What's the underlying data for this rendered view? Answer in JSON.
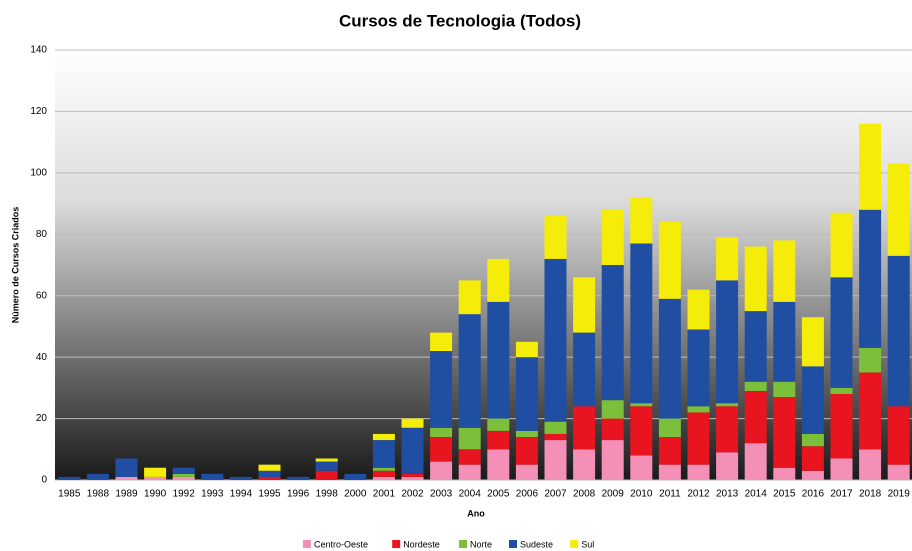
{
  "chart_data": {
    "type": "stacked_bar",
    "title": "Cursos de Tecnologia (Todos)",
    "x_label": "Ano",
    "y_label": "Número de Cursos Criados",
    "categories": [
      "1985",
      "1988",
      "1989",
      "1990",
      "1992",
      "1993",
      "1994",
      "1995",
      "1996",
      "1998",
      "2000",
      "2001",
      "2002",
      "2003",
      "2004",
      "2005",
      "2006",
      "2007",
      "2008",
      "2009",
      "2010",
      "2011",
      "2012",
      "2013",
      "2014",
      "2015",
      "2016",
      "2017",
      "2018",
      "2019"
    ],
    "series": [
      {
        "name": "Centro-Oeste",
        "color": "#f48fb8",
        "values": [
          0,
          0,
          1,
          1,
          1,
          0,
          0,
          0,
          0,
          0,
          0,
          1,
          1,
          6,
          5,
          10,
          5,
          13,
          10,
          13,
          8,
          5,
          5,
          9,
          12,
          4,
          3,
          7,
          10,
          5
        ]
      },
      {
        "name": "Nordeste",
        "color": "#e8141f",
        "values": [
          0,
          0,
          0,
          0,
          0,
          0,
          0,
          1,
          0,
          3,
          0,
          2,
          1,
          8,
          5,
          6,
          9,
          2,
          14,
          7,
          16,
          9,
          17,
          15,
          17,
          23,
          8,
          21,
          25,
          19
        ]
      },
      {
        "name": "Norte",
        "color": "#7bbf3a",
        "values": [
          0,
          0,
          0,
          0,
          1,
          0,
          0,
          0,
          0,
          0,
          0,
          1,
          0,
          3,
          7,
          4,
          2,
          4,
          0,
          6,
          1,
          6,
          2,
          1,
          3,
          5,
          4,
          2,
          8,
          0
        ]
      },
      {
        "name": "Sudeste",
        "color": "#1f4ea3",
        "values": [
          1,
          2,
          6,
          0,
          2,
          2,
          1,
          2,
          1,
          3,
          2,
          9,
          15,
          25,
          37,
          38,
          24,
          53,
          24,
          44,
          52,
          39,
          25,
          40,
          23,
          26,
          22,
          36,
          45,
          49
        ]
      },
      {
        "name": "Sul",
        "color": "#f5ec0a",
        "values": [
          0,
          0,
          0,
          3,
          0,
          0,
          0,
          2,
          0,
          1,
          0,
          2,
          3,
          6,
          11,
          14,
          5,
          14,
          18,
          18,
          15,
          25,
          13,
          14,
          21,
          20,
          16,
          21,
          28,
          30
        ]
      }
    ],
    "ylim": [
      0,
      140
    ],
    "yticks": [
      0,
      20,
      40,
      60,
      80,
      100,
      120,
      140
    ],
    "grid": true,
    "legend": "bottom"
  }
}
